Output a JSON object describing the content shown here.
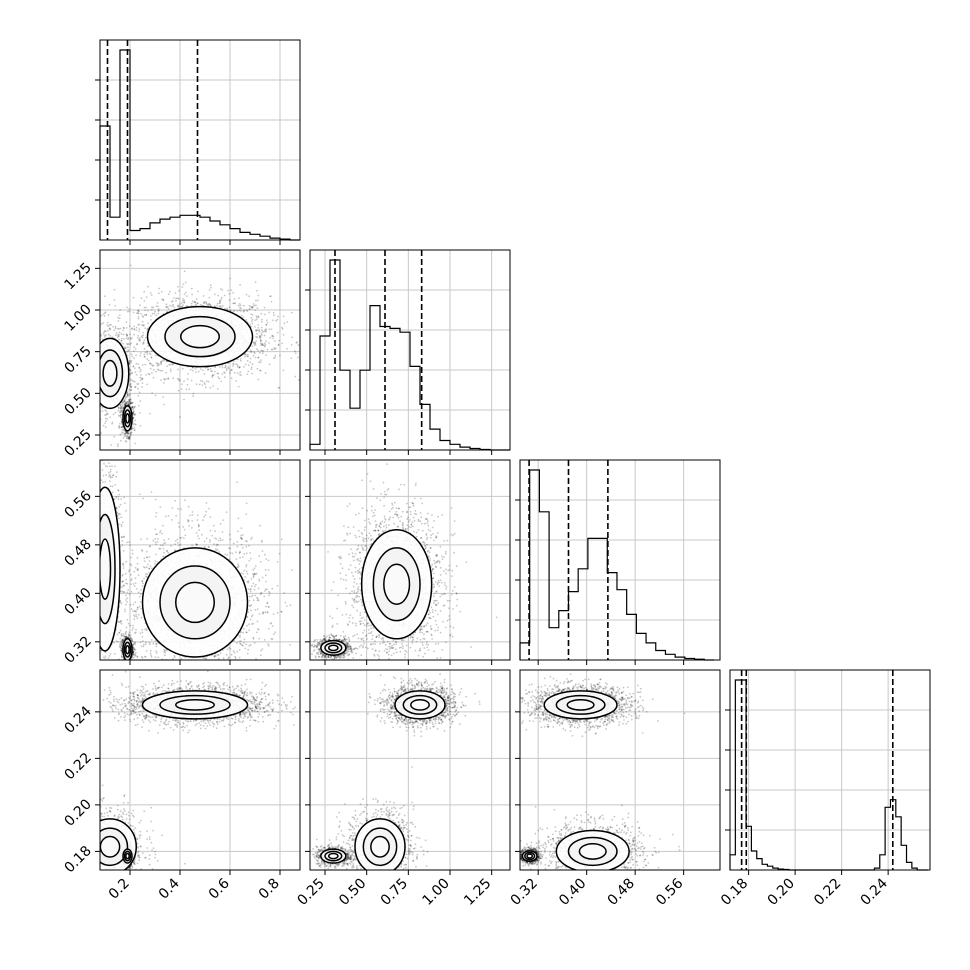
{
  "chart_data": {
    "type": "corner",
    "parameters": [
      {
        "name": "",
        "range": [
          0.08,
          0.88
        ],
        "ticks": [
          0.2,
          0.4,
          0.6,
          0.8
        ],
        "tick_labels": [
          "0.2",
          "0.4",
          "0.6",
          "0.8"
        ],
        "quantiles": [
          0.11,
          0.19,
          0.47
        ]
      },
      {
        "name": "",
        "range": [
          0.16,
          1.36
        ],
        "ticks": [
          0.25,
          0.5,
          0.75,
          1.0,
          1.25
        ],
        "tick_labels": [
          "0.25",
          "0.50",
          "0.75",
          "1.00",
          "1.25"
        ],
        "quantiles": [
          0.31,
          0.61,
          0.83
        ]
      },
      {
        "name": "",
        "range": [
          0.29,
          0.62
        ],
        "ticks": [
          0.32,
          0.4,
          0.48,
          0.56
        ],
        "tick_labels": [
          "0.32",
          "0.40",
          "0.48",
          "0.56"
        ],
        "quantiles": [
          0.305,
          0.37,
          0.435
        ]
      },
      {
        "name": "",
        "range": [
          0.172,
          0.258
        ],
        "ticks": [
          0.18,
          0.2,
          0.22,
          0.24
        ],
        "tick_labels": [
          "0.18",
          "0.20",
          "0.22",
          "0.24"
        ],
        "quantiles": [
          0.177,
          0.179,
          0.242
        ]
      }
    ],
    "histograms": [
      {
        "bins": [
          0.08,
          0.1,
          0.12,
          0.14,
          0.16,
          0.18,
          0.2,
          0.22,
          0.24,
          0.26,
          0.28,
          0.3,
          0.32,
          0.34,
          0.36,
          0.38,
          0.4,
          0.42,
          0.44,
          0.46,
          0.48,
          0.5,
          0.52,
          0.54,
          0.56,
          0.58,
          0.6,
          0.62,
          0.64,
          0.66,
          0.68,
          0.7,
          0.72,
          0.74,
          0.76,
          0.78,
          0.8,
          0.82,
          0.84,
          0.86,
          0.88
        ],
        "counts": [
          0.6,
          0.6,
          0.12,
          0.12,
          1.0,
          1.0,
          0.05,
          0.05,
          0.06,
          0.06,
          0.09,
          0.09,
          0.11,
          0.11,
          0.12,
          0.12,
          0.13,
          0.13,
          0.13,
          0.13,
          0.12,
          0.12,
          0.1,
          0.1,
          0.08,
          0.08,
          0.06,
          0.06,
          0.04,
          0.04,
          0.03,
          0.03,
          0.02,
          0.02,
          0.01,
          0.01,
          0.005,
          0.005,
          0.0,
          0.0
        ]
      },
      {
        "bins": [
          0.16,
          0.22,
          0.28,
          0.34,
          0.4,
          0.46,
          0.52,
          0.58,
          0.64,
          0.7,
          0.76,
          0.82,
          0.88,
          0.94,
          1.0,
          1.06,
          1.12,
          1.18,
          1.24,
          1.3,
          1.36
        ],
        "counts": [
          0.03,
          0.6,
          1.0,
          0.42,
          0.22,
          0.42,
          0.76,
          0.65,
          0.64,
          0.62,
          0.44,
          0.24,
          0.11,
          0.05,
          0.03,
          0.015,
          0.008,
          0.003,
          0.0,
          0.0
        ]
      },
      {
        "bins": [
          0.29,
          0.306,
          0.322,
          0.338,
          0.354,
          0.37,
          0.386,
          0.402,
          0.418,
          0.434,
          0.45,
          0.466,
          0.482,
          0.498,
          0.514,
          0.53,
          0.546,
          0.562,
          0.578,
          0.594,
          0.61
        ],
        "counts": [
          0.09,
          1.0,
          0.78,
          0.17,
          0.26,
          0.36,
          0.48,
          0.64,
          0.64,
          0.46,
          0.37,
          0.24,
          0.14,
          0.09,
          0.05,
          0.03,
          0.015,
          0.008,
          0.004,
          0.0
        ]
      },
      {
        "bins": [
          0.172,
          0.1743,
          0.1766,
          0.1789,
          0.1812,
          0.1835,
          0.1858,
          0.1881,
          0.1904,
          0.1927,
          0.195,
          0.1973,
          0.1996,
          0.2019,
          0.2042,
          0.2065,
          0.2088,
          0.2111,
          0.2134,
          0.2157,
          0.218,
          0.2203,
          0.2226,
          0.2249,
          0.2272,
          0.2295,
          0.2318,
          0.2341,
          0.2364,
          0.2387,
          0.241,
          0.2433,
          0.2456,
          0.2479,
          0.2502,
          0.2525,
          0.2548,
          0.2571
        ],
        "counts": [
          0.08,
          1.0,
          1.0,
          0.23,
          0.1,
          0.06,
          0.03,
          0.02,
          0.01,
          0.005,
          0.003,
          0.0,
          0.0,
          0.0,
          0.0,
          0.0,
          0.0,
          0.0,
          0.0,
          0.0,
          0.0,
          0.0,
          0.0,
          0.0,
          0.0,
          0.0,
          0.0,
          0.01,
          0.08,
          0.33,
          0.37,
          0.28,
          0.13,
          0.04,
          0.01,
          0.0,
          0.0
        ]
      }
    ],
    "modes_2d": [
      {
        "pair": [
          1,
          0
        ],
        "modes": [
          {
            "cx": 0.48,
            "cy": 0.84,
            "sx": 0.14,
            "sy": 0.12,
            "n": 2200
          },
          {
            "cx": 0.12,
            "cy": 0.62,
            "sx": 0.05,
            "sy": 0.14,
            "n": 900
          },
          {
            "cx": 0.19,
            "cy": 0.35,
            "sx": 0.012,
            "sy": 0.05,
            "n": 700
          }
        ]
      },
      {
        "pair": [
          2,
          0
        ],
        "modes": [
          {
            "cx": 0.46,
            "cy": 0.385,
            "sx": 0.14,
            "sy": 0.06,
            "n": 2200
          },
          {
            "cx": 0.1,
            "cy": 0.44,
            "sx": 0.04,
            "sy": 0.09,
            "n": 900
          },
          {
            "cx": 0.19,
            "cy": 0.307,
            "sx": 0.012,
            "sy": 0.012,
            "n": 700
          }
        ]
      },
      {
        "pair": [
          2,
          1
        ],
        "modes": [
          {
            "cx": 0.68,
            "cy": 0.415,
            "sx": 0.14,
            "sy": 0.06,
            "n": 2200
          },
          {
            "cx": 0.3,
            "cy": 0.31,
            "sx": 0.05,
            "sy": 0.008,
            "n": 900
          }
        ]
      },
      {
        "pair": [
          3,
          0
        ],
        "modes": [
          {
            "cx": 0.46,
            "cy": 0.243,
            "sx": 0.14,
            "sy": 0.004,
            "n": 2200
          },
          {
            "cx": 0.12,
            "cy": 0.182,
            "sx": 0.07,
            "sy": 0.008,
            "n": 900
          },
          {
            "cx": 0.19,
            "cy": 0.178,
            "sx": 0.012,
            "sy": 0.002,
            "n": 700
          }
        ]
      },
      {
        "pair": [
          3,
          1
        ],
        "modes": [
          {
            "cx": 0.82,
            "cy": 0.243,
            "sx": 0.1,
            "sy": 0.004,
            "n": 1800
          },
          {
            "cx": 0.58,
            "cy": 0.182,
            "sx": 0.1,
            "sy": 0.008,
            "n": 1100
          },
          {
            "cx": 0.3,
            "cy": 0.178,
            "sx": 0.05,
            "sy": 0.002,
            "n": 800
          }
        ]
      },
      {
        "pair": [
          3,
          2
        ],
        "modes": [
          {
            "cx": 0.39,
            "cy": 0.243,
            "sx": 0.04,
            "sy": 0.004,
            "n": 2000
          },
          {
            "cx": 0.41,
            "cy": 0.18,
            "sx": 0.04,
            "sy": 0.006,
            "n": 1300
          },
          {
            "cx": 0.306,
            "cy": 0.178,
            "sx": 0.008,
            "sy": 0.0015,
            "n": 800
          }
        ]
      }
    ],
    "grid": true,
    "legend": "none"
  }
}
